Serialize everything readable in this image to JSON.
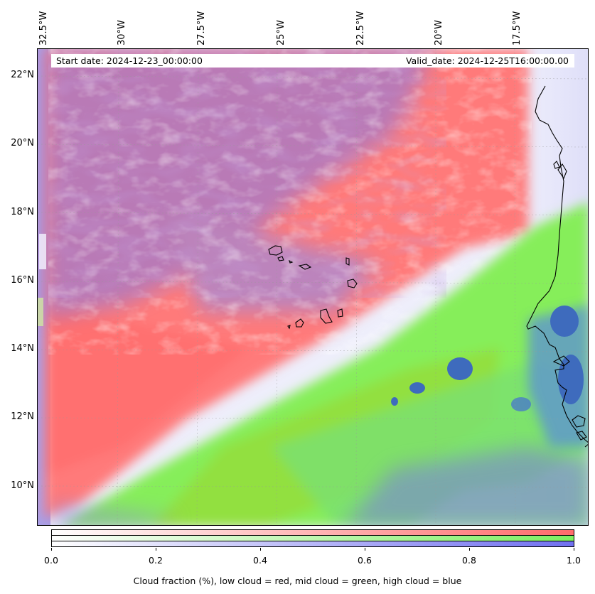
{
  "map": {
    "start_date": "Start date: 2024-12-23_00:00:00",
    "valid_date": "Valid_date: 2024-12-25T16:00:00.00",
    "lon_labels": [
      "32.5°W",
      "30°W",
      "27.5°W",
      "25°W",
      "22.5°W",
      "20°W",
      "17.5°W"
    ],
    "lat_labels": [
      "22°N",
      "20°N",
      "18°N",
      "16°N",
      "14°N",
      "12°N",
      "10°N"
    ]
  },
  "legend": {
    "title": "Cloud fraction (%), low cloud = red, mid cloud = green, high cloud = blue",
    "ticks": [
      "0.0",
      "0.2",
      "0.4",
      "0.6",
      "0.8",
      "1.0"
    ],
    "colors": {
      "low": "#ff7070",
      "mid": "#80ff60",
      "high": "#7070ff",
      "ocean_blue": "#3c6fbf"
    }
  }
}
